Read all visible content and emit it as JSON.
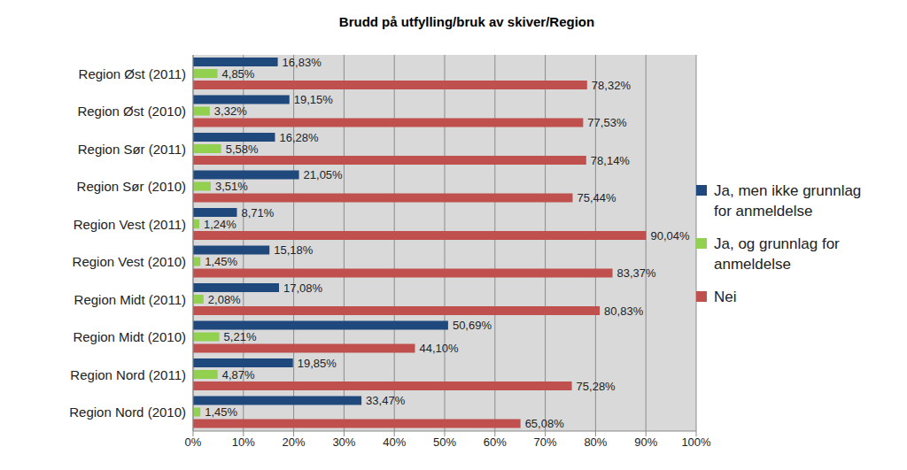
{
  "chart_data": {
    "type": "bar",
    "title": "Brudd på utfylling/bruk av skiver/Region",
    "orientation": "horizontal",
    "categories": [
      "Region Øst (2011)",
      "Region Øst (2010)",
      "Region Sør (2011)",
      "Region Sør (2010)",
      "Region Vest (2011)",
      "Region Vest (2010)",
      "Region Midt (2011)",
      "Region Midt (2010)",
      "Region Nord (2011)",
      "Region Nord (2010)"
    ],
    "series": [
      {
        "name": "Ja, men ikke grunnlag for anmeldelse",
        "color": "#1f497d",
        "values": [
          16.83,
          19.15,
          16.28,
          21.05,
          8.71,
          15.18,
          17.08,
          50.69,
          19.85,
          33.47
        ],
        "value_labels": [
          "16,83%",
          "19,15%",
          "16,28%",
          "21,05%",
          "8,71%",
          "15,18%",
          "17,08%",
          "50,69%",
          "19,85%",
          "33,47%"
        ]
      },
      {
        "name": "Ja, og grunnlag for anmeldelse",
        "color": "#92d050",
        "values": [
          4.85,
          3.32,
          5.58,
          3.51,
          1.24,
          1.45,
          2.08,
          5.21,
          4.87,
          1.45
        ],
        "value_labels": [
          "4,85%",
          "3,32%",
          "5,58%",
          "3,51%",
          "1,24%",
          "1,45%",
          "2,08%",
          "5,21%",
          "4,87%",
          "1,45%"
        ]
      },
      {
        "name": "Nei",
        "color": "#c0504d",
        "values": [
          78.32,
          77.53,
          78.14,
          75.44,
          90.04,
          83.37,
          80.83,
          44.1,
          75.28,
          65.08
        ],
        "value_labels": [
          "78,32%",
          "77,53%",
          "78,14%",
          "75,44%",
          "90,04%",
          "83,37%",
          "80,83%",
          "44,10%",
          "75,28%",
          "65,08%"
        ]
      }
    ],
    "xlim": [
      0,
      100
    ],
    "xticks": [
      {
        "value": 0,
        "label": "0%"
      },
      {
        "value": 10,
        "label": "10%"
      },
      {
        "value": 20,
        "label": "20%"
      },
      {
        "value": 30,
        "label": "30%"
      },
      {
        "value": 40,
        "label": "40%"
      },
      {
        "value": 50,
        "label": "50%"
      },
      {
        "value": 60,
        "label": "60%"
      },
      {
        "value": 70,
        "label": "70%"
      },
      {
        "value": 80,
        "label": "80%"
      },
      {
        "value": 90,
        "label": "90%"
      },
      {
        "value": 100,
        "label": "100%"
      }
    ],
    "grid": true,
    "legend": "right",
    "data_labels": true
  }
}
